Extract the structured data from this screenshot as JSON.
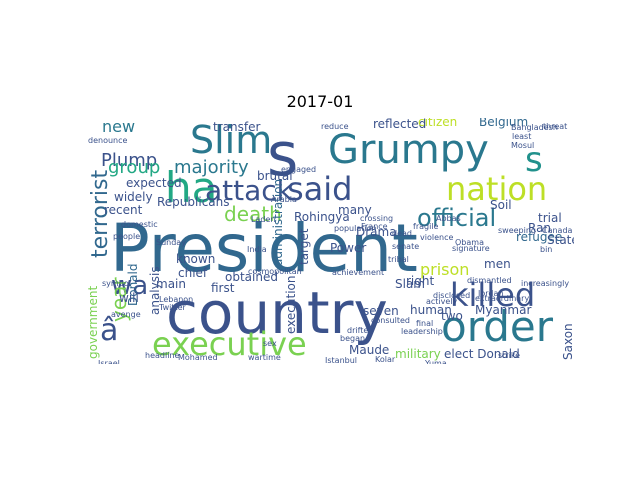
{
  "title": "2017-01",
  "words": [
    {
      "text": "President",
      "color": "#31688e"
    },
    {
      "text": "country",
      "color": "#3b528b"
    },
    {
      "text": "s",
      "color": "#3b528b"
    },
    {
      "text": "Grumpy",
      "color": "#2a788e"
    },
    {
      "text": "s",
      "color": "#21918c"
    },
    {
      "text": "Slim",
      "color": "#2a788e"
    },
    {
      "text": "said",
      "color": "#3b528b"
    },
    {
      "text": "nation",
      "color": "#bddf26"
    },
    {
      "text": "ha",
      "color": "#22a884"
    },
    {
      "text": "attack",
      "color": "#3b528b"
    },
    {
      "text": "executive",
      "color": "#7ad151"
    },
    {
      "text": "order",
      "color": "#2a788e"
    },
    {
      "text": "killed",
      "color": "#3b528b"
    },
    {
      "text": "official",
      "color": "#2a788e"
    },
    {
      "text": "death",
      "color": "#7ad151"
    },
    {
      "text": "terrorist",
      "color": "#31688e"
    },
    {
      "text": "Plump",
      "color": "#3b528b"
    },
    {
      "text": "majority",
      "color": "#2a788e"
    },
    {
      "text": "group",
      "color": "#22a884"
    },
    {
      "text": "wa",
      "color": "#3b528b"
    },
    {
      "text": "year",
      "color": "#7ad151"
    },
    {
      "text": "â",
      "color": "#3b528b"
    },
    {
      "text": "new",
      "color": "#2a788e"
    },
    {
      "text": "Donald",
      "color": "#31688e"
    },
    {
      "text": "elect Donald",
      "color": "#3b528b"
    },
    {
      "text": "Republicans",
      "color": "#3b528b"
    },
    {
      "text": "refugee",
      "color": "#31688e"
    },
    {
      "text": "Rohingya",
      "color": "#3b528b"
    },
    {
      "text": "Myanmar",
      "color": "#3b528b"
    },
    {
      "text": "military",
      "color": "#7ad151"
    },
    {
      "text": "Maude",
      "color": "#3b528b"
    },
    {
      "text": "prison",
      "color": "#bddf26"
    },
    {
      "text": "execution",
      "color": "#3b528b"
    },
    {
      "text": "administration",
      "color": "#31688e"
    },
    {
      "text": "target",
      "color": "#3b528b"
    },
    {
      "text": "Power",
      "color": "#3b528b"
    },
    {
      "text": "Slam",
      "color": "#3b528b"
    },
    {
      "text": "human",
      "color": "#3b528b"
    },
    {
      "text": "two",
      "color": "#3b528b"
    },
    {
      "text": "right",
      "color": "#3b528b"
    },
    {
      "text": "men",
      "color": "#3b528b"
    },
    {
      "text": "trial",
      "color": "#3b528b"
    },
    {
      "text": "Ran",
      "color": "#3b528b"
    },
    {
      "text": "State",
      "color": "#3b528b"
    },
    {
      "text": "Soil",
      "color": "#3b528b"
    },
    {
      "text": "Belgium",
      "color": "#31688e"
    },
    {
      "text": "reflected",
      "color": "#3b528b"
    },
    {
      "text": "citizen",
      "color": "#bddf26"
    },
    {
      "text": "transfer",
      "color": "#3b528b"
    },
    {
      "text": "brutal",
      "color": "#3b528b"
    },
    {
      "text": "Drama",
      "color": "#3b528b"
    },
    {
      "text": "many",
      "color": "#3b528b"
    },
    {
      "text": "expected",
      "color": "#3b528b"
    },
    {
      "text": "widely",
      "color": "#3b528b"
    },
    {
      "text": "recent",
      "color": "#3b528b"
    },
    {
      "text": "known",
      "color": "#3b528b"
    },
    {
      "text": "chief",
      "color": "#3b528b"
    },
    {
      "text": "main",
      "color": "#3b528b"
    },
    {
      "text": "first",
      "color": "#3b528b"
    },
    {
      "text": "obtained",
      "color": "#3b528b"
    },
    {
      "text": "will",
      "color": "#3b528b"
    },
    {
      "text": "government",
      "color": "#7ad151"
    },
    {
      "text": "Saxon",
      "color": "#3b528b"
    },
    {
      "text": "seven",
      "color": "#3b528b"
    },
    {
      "text": "analysis",
      "color": "#3b528b"
    },
    {
      "text": "India",
      "color": "#3b528b"
    },
    {
      "text": "cosmopolitan",
      "color": "#3b528b"
    },
    {
      "text": "Laden",
      "color": "#3b528b"
    },
    {
      "text": "Arabia",
      "color": "#3b528b"
    },
    {
      "text": "France",
      "color": "#3b528b"
    },
    {
      "text": "dead",
      "color": "#3b528b"
    },
    {
      "text": "domestic",
      "color": "#3b528b"
    },
    {
      "text": "people",
      "color": "#3b528b"
    },
    {
      "text": "Sunday",
      "color": "#3b528b"
    },
    {
      "text": "symbol",
      "color": "#3b528b"
    },
    {
      "text": "Lebanon",
      "color": "#3b528b"
    },
    {
      "text": "Twitter",
      "color": "#3b528b"
    },
    {
      "text": "Istanbul",
      "color": "#3b528b"
    },
    {
      "text": "Israel",
      "color": "#3b528b"
    },
    {
      "text": "Canada",
      "color": "#3b528b"
    },
    {
      "text": "threat",
      "color": "#3b528b"
    },
    {
      "text": "bin",
      "color": "#3b528b"
    },
    {
      "text": "leadership",
      "color": "#3b528b"
    },
    {
      "text": "actively",
      "color": "#3b528b"
    },
    {
      "text": "reduce",
      "color": "#3b528b"
    },
    {
      "text": "engaged",
      "color": "#3b528b"
    },
    {
      "text": "denounce",
      "color": "#3b528b"
    },
    {
      "text": "avenge",
      "color": "#3b528b"
    },
    {
      "text": "headline",
      "color": "#3b528b"
    },
    {
      "text": "sex",
      "color": "#3b528b"
    },
    {
      "text": "final",
      "color": "#3b528b"
    },
    {
      "text": "began",
      "color": "#3b528b"
    },
    {
      "text": "disclosed",
      "color": "#3b528b"
    },
    {
      "text": "signature",
      "color": "#3b528b"
    },
    {
      "text": "dismantled",
      "color": "#3b528b"
    },
    {
      "text": "increasingly",
      "color": "#3b528b"
    },
    {
      "text": "extraordinary",
      "color": "#3b528b"
    },
    {
      "text": "Jordan",
      "color": "#3b528b"
    },
    {
      "text": "achievement",
      "color": "#3b528b"
    },
    {
      "text": "Mosul",
      "color": "#3b528b"
    },
    {
      "text": "Bangladesh",
      "color": "#3b528b"
    },
    {
      "text": "least",
      "color": "#3b528b"
    },
    {
      "text": "Abbas",
      "color": "#3b528b"
    },
    {
      "text": "fragile",
      "color": "#3b528b"
    },
    {
      "text": "Obama",
      "color": "#3b528b"
    },
    {
      "text": "drifted",
      "color": "#3b528b"
    },
    {
      "text": "Mohamed",
      "color": "#3b528b"
    },
    {
      "text": "wartime",
      "color": "#3b528b"
    },
    {
      "text": "population",
      "color": "#3b528b"
    },
    {
      "text": "consulted",
      "color": "#3b528b"
    },
    {
      "text": "crossing",
      "color": "#3b528b"
    },
    {
      "text": "senate",
      "color": "#3b528b"
    },
    {
      "text": "Kolar",
      "color": "#3b528b"
    },
    {
      "text": "Yuma",
      "color": "#3b528b"
    },
    {
      "text": "sweeping",
      "color": "#3b528b"
    },
    {
      "text": "violence",
      "color": "#3b528b"
    },
    {
      "text": "tribal",
      "color": "#3b528b"
    },
    {
      "text": "strike",
      "color": "#3b528b"
    }
  ]
}
